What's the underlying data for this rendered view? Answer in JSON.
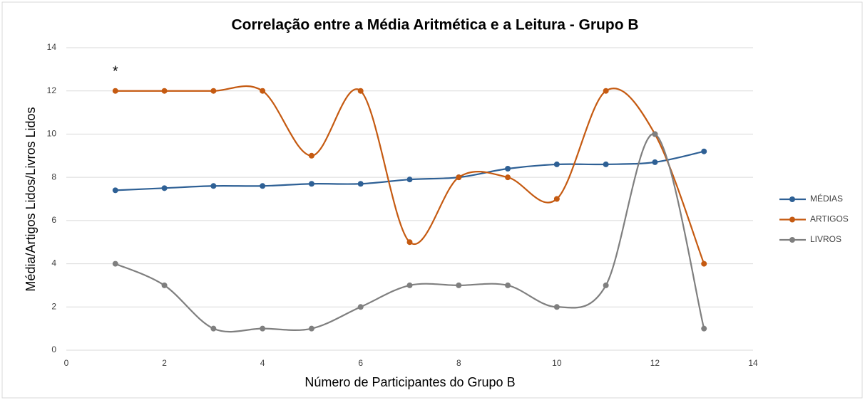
{
  "chart_data": {
    "type": "line",
    "title": "Correlação entre a Média Aritmética e a Leitura - Grupo B",
    "xlabel": "Número de Participantes do Grupo B",
    "ylabel": "Média/Artigos Lidos/Livros Lidos",
    "x": [
      1,
      2,
      3,
      4,
      5,
      6,
      7,
      8,
      9,
      10,
      11,
      12,
      13
    ],
    "series": [
      {
        "name": "MÉDIAS",
        "color": "#2e6095",
        "values": [
          7.4,
          7.5,
          7.6,
          7.6,
          7.7,
          7.7,
          7.9,
          8.0,
          8.4,
          8.6,
          8.6,
          8.7,
          9.2
        ]
      },
      {
        "name": "ARTIGOS",
        "color": "#c55a11",
        "values": [
          12,
          12,
          12,
          12,
          9,
          12,
          5,
          8,
          8,
          7,
          12,
          10,
          4
        ]
      },
      {
        "name": "LIVROS",
        "color": "#7f7f7f",
        "values": [
          4,
          3,
          1,
          1,
          1,
          2,
          3,
          3,
          3,
          2,
          3,
          10,
          1
        ]
      }
    ],
    "annotations": [
      {
        "text": "*",
        "x": 1,
        "y": 13
      }
    ],
    "xlim": [
      0,
      14
    ],
    "xticks": [
      0,
      2,
      4,
      6,
      8,
      10,
      12,
      14
    ],
    "ylim": [
      0,
      14
    ],
    "yticks": [
      0,
      2,
      4,
      6,
      8,
      10,
      12,
      14
    ],
    "grid": true,
    "smooth": true,
    "legend": "right"
  }
}
